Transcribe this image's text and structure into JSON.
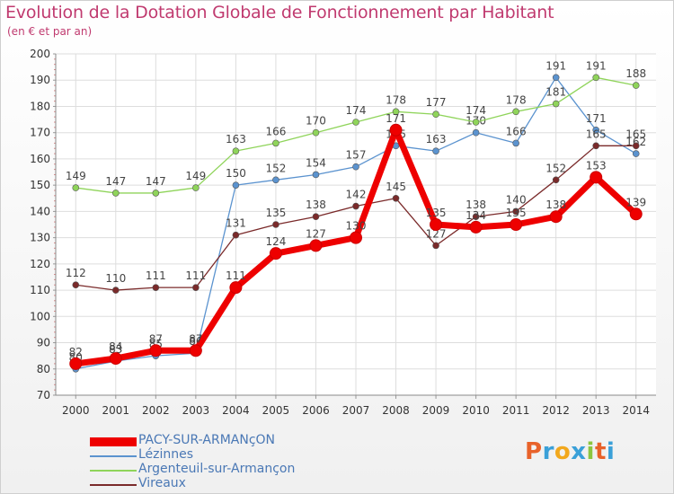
{
  "header": {
    "title": "Evolution de la Dotation Globale de Fonctionnement par Habitant",
    "subtitle": "(en € et par an)"
  },
  "logo": {
    "text": "Proxiti",
    "colors": [
      "#e8622a",
      "#3aa0d8",
      "#f2a81d",
      "#3aa0d8",
      "#8cc63f",
      "#e8622a",
      "#3aa0d8"
    ]
  },
  "chart_data": {
    "type": "line",
    "x": [
      "2000",
      "2001",
      "2002",
      "2003",
      "2004",
      "2005",
      "2006",
      "2007",
      "2008",
      "2009",
      "2010",
      "2011",
      "2012",
      "2013",
      "2014"
    ],
    "ylim": [
      70,
      200
    ],
    "yticks": [
      70,
      80,
      90,
      100,
      110,
      120,
      130,
      140,
      150,
      160,
      170,
      180,
      190,
      200
    ],
    "grid": true,
    "series": [
      {
        "name": "PACY-SUR-ARMANçON",
        "color": "#ee0000",
        "emphasis": true,
        "values": [
          82,
          84,
          87,
          87,
          111,
          124,
          127,
          130,
          171,
          135,
          134,
          135,
          138,
          153,
          139
        ],
        "labels": [
          "82",
          "84",
          "87",
          "87",
          "111",
          "124",
          "127",
          "130",
          "171",
          "135",
          "134",
          "135",
          "138",
          "153",
          "139"
        ]
      },
      {
        "name": "Lézinnes",
        "color": "#5b93cf",
        "values": [
          80,
          83,
          85,
          86,
          150,
          152,
          154,
          157,
          165,
          163,
          170,
          166,
          191,
          171,
          162
        ],
        "labels": [
          "80",
          "83",
          "85",
          "86",
          "150",
          "152",
          "154",
          "157",
          "165",
          "163",
          "170",
          "166",
          "191",
          "171",
          "162"
        ]
      },
      {
        "name": "Argenteuil-sur-Armançon",
        "color": "#8fd45a",
        "values": [
          149,
          147,
          147,
          149,
          163,
          166,
          170,
          174,
          178,
          177,
          174,
          178,
          181,
          191,
          188
        ],
        "labels": [
          "149",
          "147",
          "147",
          "149",
          "163",
          "166",
          "170",
          "174",
          "178",
          "177",
          "174",
          "178",
          "181",
          "191",
          "188"
        ]
      },
      {
        "name": "Vireaux",
        "color": "#7a2a2a",
        "values": [
          112,
          110,
          111,
          111,
          131,
          135,
          138,
          142,
          145,
          127,
          138,
          140,
          152,
          165,
          165
        ],
        "labels": [
          "112",
          "110",
          "111",
          "111",
          "131",
          "135",
          "138",
          "142",
          "145",
          "127",
          "138",
          "140",
          "152",
          "165",
          "165"
        ]
      }
    ]
  }
}
